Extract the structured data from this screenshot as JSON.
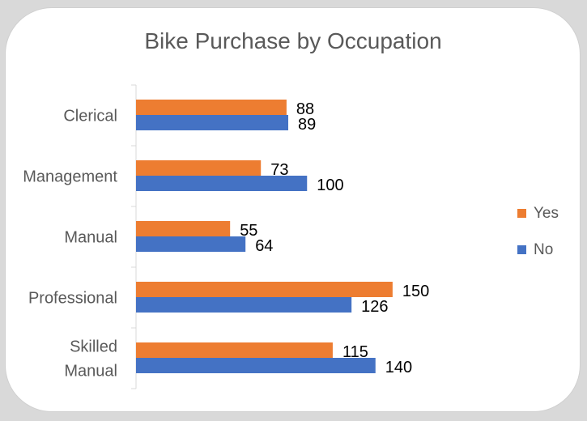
{
  "chart_data": {
    "type": "bar",
    "orientation": "horizontal",
    "title": "Bike Purchase by Occupation",
    "categories": [
      [
        "Clerical"
      ],
      [
        "Management"
      ],
      [
        "Manual"
      ],
      [
        "Professional"
      ],
      [
        "Skilled",
        "Manual"
      ]
    ],
    "series": [
      {
        "name": "Yes",
        "color": "#ed7d31",
        "values": [
          88,
          73,
          55,
          150,
          115
        ]
      },
      {
        "name": "No",
        "color": "#4472c4",
        "values": [
          89,
          100,
          64,
          126,
          140
        ]
      }
    ],
    "xlim": [
      0,
      160
    ],
    "grid": false,
    "data_labels": true,
    "legend": {
      "position": "right",
      "entries": [
        "Yes",
        "No"
      ]
    }
  }
}
